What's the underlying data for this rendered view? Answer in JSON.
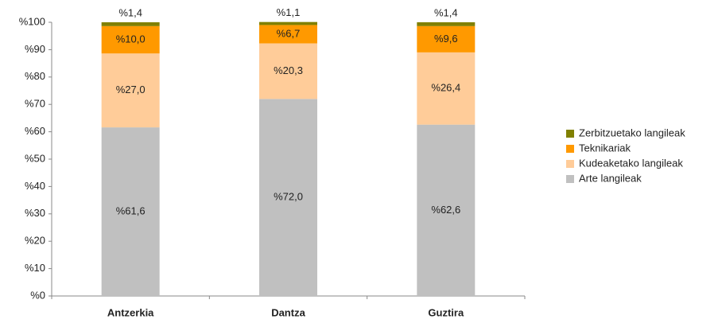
{
  "chart_data": {
    "type": "stacked_bar",
    "categories": [
      "Antzerkia",
      "Dantza",
      "Guztira"
    ],
    "series": [
      {
        "name": "Arte langileak",
        "color": "#c0c0c0",
        "values": [
          61.6,
          72.0,
          62.6
        ],
        "value_labels": [
          "%61,6",
          "%72,0",
          "%62,6"
        ]
      },
      {
        "name": "Kudeaketako langileak",
        "color": "#ffcc99",
        "values": [
          27.0,
          20.3,
          26.4
        ],
        "value_labels": [
          "%27,0",
          "%20,3",
          "%26,4"
        ]
      },
      {
        "name": "Teknikariak",
        "color": "#ff9900",
        "values": [
          10.0,
          6.7,
          9.6
        ],
        "value_labels": [
          "%10,0",
          "%6,7",
          "%9,6"
        ]
      },
      {
        "name": "Zerbitzuetako langileak",
        "color": "#808000",
        "values": [
          1.4,
          1.1,
          1.4
        ],
        "value_labels": [
          "%1,4",
          "%1,1",
          "%1,4"
        ]
      }
    ],
    "ylim": [
      0,
      100
    ],
    "yticks": [
      {
        "value": 0,
        "label": "%0"
      },
      {
        "value": 10,
        "label": "%10"
      },
      {
        "value": 20,
        "label": "%20"
      },
      {
        "value": 30,
        "label": "%30"
      },
      {
        "value": 40,
        "label": "%40"
      },
      {
        "value": 50,
        "label": "%50"
      },
      {
        "value": 60,
        "label": "%60"
      },
      {
        "value": 70,
        "label": "%70"
      },
      {
        "value": 80,
        "label": "%80"
      },
      {
        "value": 90,
        "label": "%90"
      },
      {
        "value": 100,
        "label": "%100"
      }
    ],
    "legend": "right",
    "grid": false
  }
}
